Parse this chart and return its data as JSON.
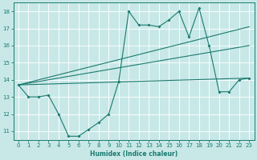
{
  "xlabel": "Humidex (Indice chaleur)",
  "x_values": [
    0,
    1,
    2,
    3,
    4,
    5,
    6,
    7,
    8,
    9,
    10,
    11,
    12,
    13,
    14,
    15,
    16,
    17,
    18,
    19,
    20,
    21,
    22,
    23
  ],
  "jagged_y": [
    13.7,
    13.0,
    13.0,
    13.1,
    12.0,
    10.7,
    10.7,
    11.1,
    11.5,
    12.0,
    13.9,
    18.0,
    17.2,
    17.2,
    17.1,
    17.5,
    18.0,
    16.5,
    18.2,
    16.0,
    13.3,
    13.3,
    14.0,
    14.1
  ],
  "trend1_x": [
    0,
    23
  ],
  "trend1_y": [
    13.7,
    14.1
  ],
  "trend2_x": [
    0,
    23
  ],
  "trend2_y": [
    13.7,
    16.0
  ],
  "trend3_x": [
    0,
    23
  ],
  "trend3_y": [
    13.7,
    17.1
  ],
  "color": "#1a7a6e",
  "bg_color": "#c8e8e8",
  "grid_color": "#ffffff",
  "ylim": [
    10.5,
    18.5
  ],
  "xlim": [
    -0.5,
    23.5
  ],
  "yticks": [
    11,
    12,
    13,
    14,
    15,
    16,
    17,
    18
  ],
  "xticks": [
    0,
    1,
    2,
    3,
    4,
    5,
    6,
    7,
    8,
    9,
    10,
    11,
    12,
    13,
    14,
    15,
    16,
    17,
    18,
    19,
    20,
    21,
    22,
    23
  ],
  "tick_fontsize": 5.0,
  "xlabel_fontsize": 5.5
}
